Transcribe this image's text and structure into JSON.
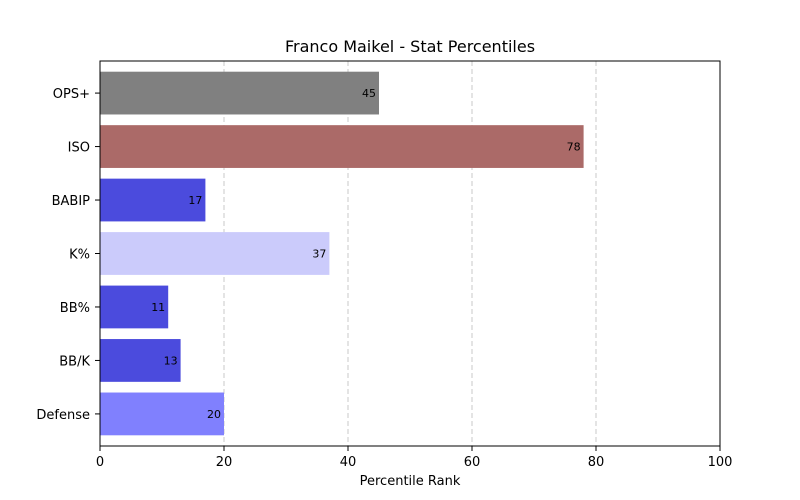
{
  "chart_data": {
    "type": "bar",
    "orientation": "horizontal",
    "title": "Franco Maikel - Stat Percentiles",
    "xlabel": "Percentile Rank",
    "ylabel": "",
    "xlim": [
      0,
      100
    ],
    "xticks": [
      0,
      20,
      40,
      60,
      80,
      100
    ],
    "grid": "x-dashed",
    "categories": [
      "OPS+",
      "ISO",
      "BABIP",
      "K%",
      "BB%",
      "BB/K",
      "Defense"
    ],
    "values": [
      45,
      78,
      17,
      37,
      11,
      13,
      20
    ],
    "colors": [
      "#808080",
      "#ab6a68",
      "#4b4bdd",
      "#cbcbfb",
      "#4b4bdd",
      "#4b4bdd",
      "#8080fe"
    ]
  }
}
